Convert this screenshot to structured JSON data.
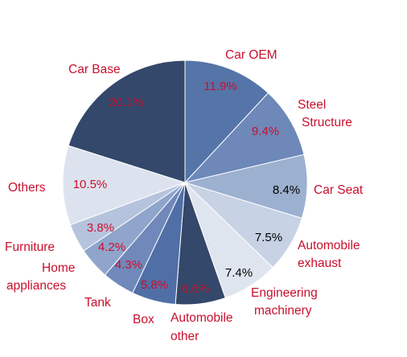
{
  "chart_data": {
    "type": "pie",
    "start_angle_deg": 0,
    "direction": "clockwise",
    "slices": [
      {
        "label": "Car OEM",
        "value": 11.9,
        "display": "11.9%",
        "color": "#5574a8",
        "value_color": "#c8102e"
      },
      {
        "label": "Steel Structure",
        "value": 9.4,
        "display": "9.4%",
        "color": "#6d88b9",
        "value_color": "#c8102e"
      },
      {
        "label": "Car Seat",
        "value": 8.4,
        "display": "8.4%",
        "color": "#9cb0d0",
        "value_color": "#000000"
      },
      {
        "label": "Automobile exhaust",
        "value": 7.5,
        "display": "7.5%",
        "color": "#c7d2e4",
        "value_color": "#000000"
      },
      {
        "label": "Engineering machinery",
        "value": 7.4,
        "display": "7.4%",
        "color": "#dfe5ef",
        "value_color": "#000000"
      },
      {
        "label": "Automobile other",
        "value": 6.6,
        "display": "6.6%",
        "color": "#33486a",
        "value_color": "#c8102e"
      },
      {
        "label": "Box",
        "value": 5.8,
        "display": "5.8%",
        "color": "#4f6fa6",
        "value_color": "#c8102e"
      },
      {
        "label": "Tank",
        "value": 4.3,
        "display": "4.3%",
        "color": "#7089ba",
        "value_color": "#c8102e"
      },
      {
        "label": "Home appliances",
        "value": 4.2,
        "display": "4.2%",
        "color": "#8fa5cc",
        "value_color": "#c8102e"
      },
      {
        "label": "Furniture",
        "value": 3.8,
        "display": "3.8%",
        "color": "#b5c3dc",
        "value_color": "#c8102e"
      },
      {
        "label": "Others",
        "value": 10.5,
        "display": "10.5%",
        "color": "#dde3ee",
        "value_color": "#c8102e"
      },
      {
        "label": "Car Base",
        "value": 20.1,
        "display": "20.1%",
        "color": "#33486a",
        "value_color": "#c8102e"
      }
    ],
    "category_label_color": "#c8102e",
    "legend": "none"
  }
}
